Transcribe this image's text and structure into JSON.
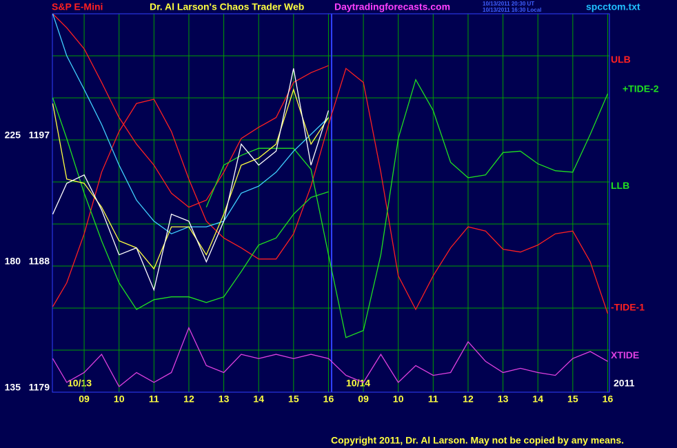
{
  "chart_data": {
    "type": "line",
    "title": "Dr. Al Larson's Chaos Trader Web",
    "subtitle": "S&P E-Mini",
    "site": "Daytradingforecasts.com",
    "timestamps": [
      "10/13/2011 20:30 UT",
      "10/13/2011 16:30 Local"
    ],
    "file": "spcctom.txt",
    "copyright": "Copyright 2011, Dr. Al Larson. May not be copied by any means.",
    "date_labels": [
      "10/13",
      "10/14",
      "2011"
    ],
    "x": [
      0.1,
      0.5,
      1,
      1.5,
      2,
      2.5,
      3,
      3.5,
      4,
      4.5,
      5,
      5.5,
      6,
      6.5,
      7,
      7.5,
      8,
      8.5,
      9,
      9.5,
      10,
      10.5,
      11,
      11.5,
      12,
      12.5,
      13,
      13.5,
      14,
      14.5,
      15,
      15.5,
      16
    ],
    "xlim": [
      0.09,
      16.05
    ],
    "xticks": [
      {
        "value": 1,
        "label": "09"
      },
      {
        "value": 2,
        "label": "10"
      },
      {
        "value": 3,
        "label": "11"
      },
      {
        "value": 4,
        "label": "12"
      },
      {
        "value": 5,
        "label": "13"
      },
      {
        "value": 6,
        "label": "14"
      },
      {
        "value": 7,
        "label": "15"
      },
      {
        "value": 8,
        "label": "16"
      },
      {
        "value": 9,
        "label": "09"
      },
      {
        "value": 10,
        "label": "10"
      },
      {
        "value": 11,
        "label": "11"
      },
      {
        "value": 12,
        "label": "12"
      },
      {
        "value": 13,
        "label": "13"
      },
      {
        "value": 14,
        "label": "14"
      },
      {
        "value": 15,
        "label": "15"
      },
      {
        "value": 16,
        "label": "16"
      }
    ],
    "ylim": [
      1179,
      1206
    ],
    "yticks": [
      1179,
      1188,
      1197
    ],
    "y2lim": [
      135,
      270
    ],
    "y2ticks": [
      135,
      180,
      225
    ],
    "grid": true,
    "series": [
      {
        "color": "#ff2020",
        "values": [
          1206.0,
          1205.0,
          1203.5,
          1201.1,
          1198.6,
          1196.7,
          1195.2,
          1193.2,
          1192.2,
          1192.7,
          1194.7,
          1197.1,
          1197.9,
          1198.6,
          1201.1,
          1201.8,
          1202.3,
          null,
          null,
          null,
          null,
          null,
          null,
          null,
          null,
          null,
          null,
          null,
          null,
          null,
          null,
          null,
          null
        ]
      },
      {
        "color": "#ff2020",
        "values": [
          1185.1,
          1186.8,
          1190.3,
          1194.7,
          1197.6,
          1199.6,
          1199.9,
          1197.6,
          1194.2,
          1191.2,
          1190.0,
          1189.3,
          1188.5,
          1188.5,
          1190.3,
          1193.7,
          1198.1,
          1202.1,
          1201.1,
          1194.7,
          1187.3,
          1184.9,
          1187.3,
          1189.3,
          1190.8,
          1190.5,
          1189.2,
          1189.0,
          1189.5,
          1190.3,
          1190.5,
          1188.3,
          1184.6
        ]
      },
      {
        "color": "#20e020",
        "values": [
          1200.0,
          1197.1,
          1193.2,
          1189.8,
          1186.8,
          1184.9,
          1185.6,
          1185.8,
          1185.8,
          1185.4,
          1185.8,
          1187.6,
          1189.5,
          1190.0,
          1191.7,
          1192.9,
          1193.3,
          null,
          null,
          null,
          null,
          null,
          null,
          null,
          null,
          null,
          null,
          null,
          null,
          null,
          null,
          null,
          null
        ]
      },
      {
        "color": "#20e020",
        "values": [
          null,
          null,
          null,
          null,
          null,
          null,
          null,
          null,
          null,
          1192.2,
          1195.2,
          1195.9,
          1196.4,
          1196.4,
          1196.4,
          1194.9,
          1188.8,
          1182.9,
          1183.4,
          1188.8,
          1197.1,
          1201.3,
          1199.1,
          1195.4,
          1194.3,
          1194.5,
          1196.1,
          1196.2,
          1195.3,
          1194.8,
          1194.7,
          1197.4,
          1200.3
        ]
      },
      {
        "color": "#40d0ff",
        "values": [
          1206.0,
          1203.0,
          1200.6,
          1198.1,
          1195.2,
          1192.7,
          1191.2,
          1190.3,
          1190.8,
          1190.8,
          1191.2,
          1193.2,
          1193.7,
          1194.7,
          1196.2,
          1197.4,
          1198.6,
          null,
          null,
          null,
          null,
          null,
          null,
          null,
          null,
          null,
          null,
          null,
          null,
          null,
          null,
          null,
          null
        ]
      },
      {
        "color": "#ffff40",
        "values": [
          1199.6,
          1194.2,
          1193.9,
          1192.2,
          1189.8,
          1189.3,
          1187.8,
          1190.8,
          1190.8,
          1188.8,
          1191.7,
          1195.2,
          1195.7,
          1196.7,
          1200.6,
          1196.7,
          1198.6,
          null,
          null,
          null,
          null,
          null,
          null,
          null,
          null,
          null,
          null,
          null,
          null,
          null,
          null,
          null,
          null
        ]
      },
      {
        "color": "#ffffff",
        "values": [
          1191.7,
          1193.9,
          1194.5,
          1192.0,
          1188.8,
          1189.3,
          1186.3,
          1191.7,
          1191.2,
          1188.3,
          1191.2,
          1196.7,
          1195.2,
          1196.2,
          1202.1,
          1195.2,
          1199.1,
          null,
          null,
          null,
          null,
          null,
          null,
          null,
          null,
          null,
          null,
          null,
          null,
          null,
          null,
          null,
          null
        ]
      },
      {
        "color": "#e040e0",
        "values": [
          1181.4,
          1179.7,
          1180.4,
          1181.7,
          1179.4,
          1180.4,
          1179.7,
          1180.4,
          1183.6,
          1180.9,
          1180.4,
          1181.7,
          1181.4,
          1181.7,
          1181.4,
          1181.7,
          1181.4,
          1180.2,
          1179.7,
          1181.7,
          1179.7,
          1180.9,
          1180.2,
          1180.4,
          1182.6,
          1181.2,
          1180.4,
          1180.7,
          1180.4,
          1180.2,
          1181.4,
          1181.9,
          1181.2
        ]
      }
    ],
    "right_labels": [
      {
        "text": "ULB",
        "value": 1202.7,
        "color": "#ff2020"
      },
      {
        "text": "+TIDE-2",
        "value": 1200.6,
        "color": "#20e020"
      },
      {
        "text": "LLB",
        "value": 1193.7,
        "color": "#20e020"
      },
      {
        "text": "-TIDE-1",
        "value": 1185.0,
        "color": "#ff2020"
      },
      {
        "text": "XTIDE",
        "value": 1181.6,
        "color": "#e040e0"
      }
    ]
  }
}
